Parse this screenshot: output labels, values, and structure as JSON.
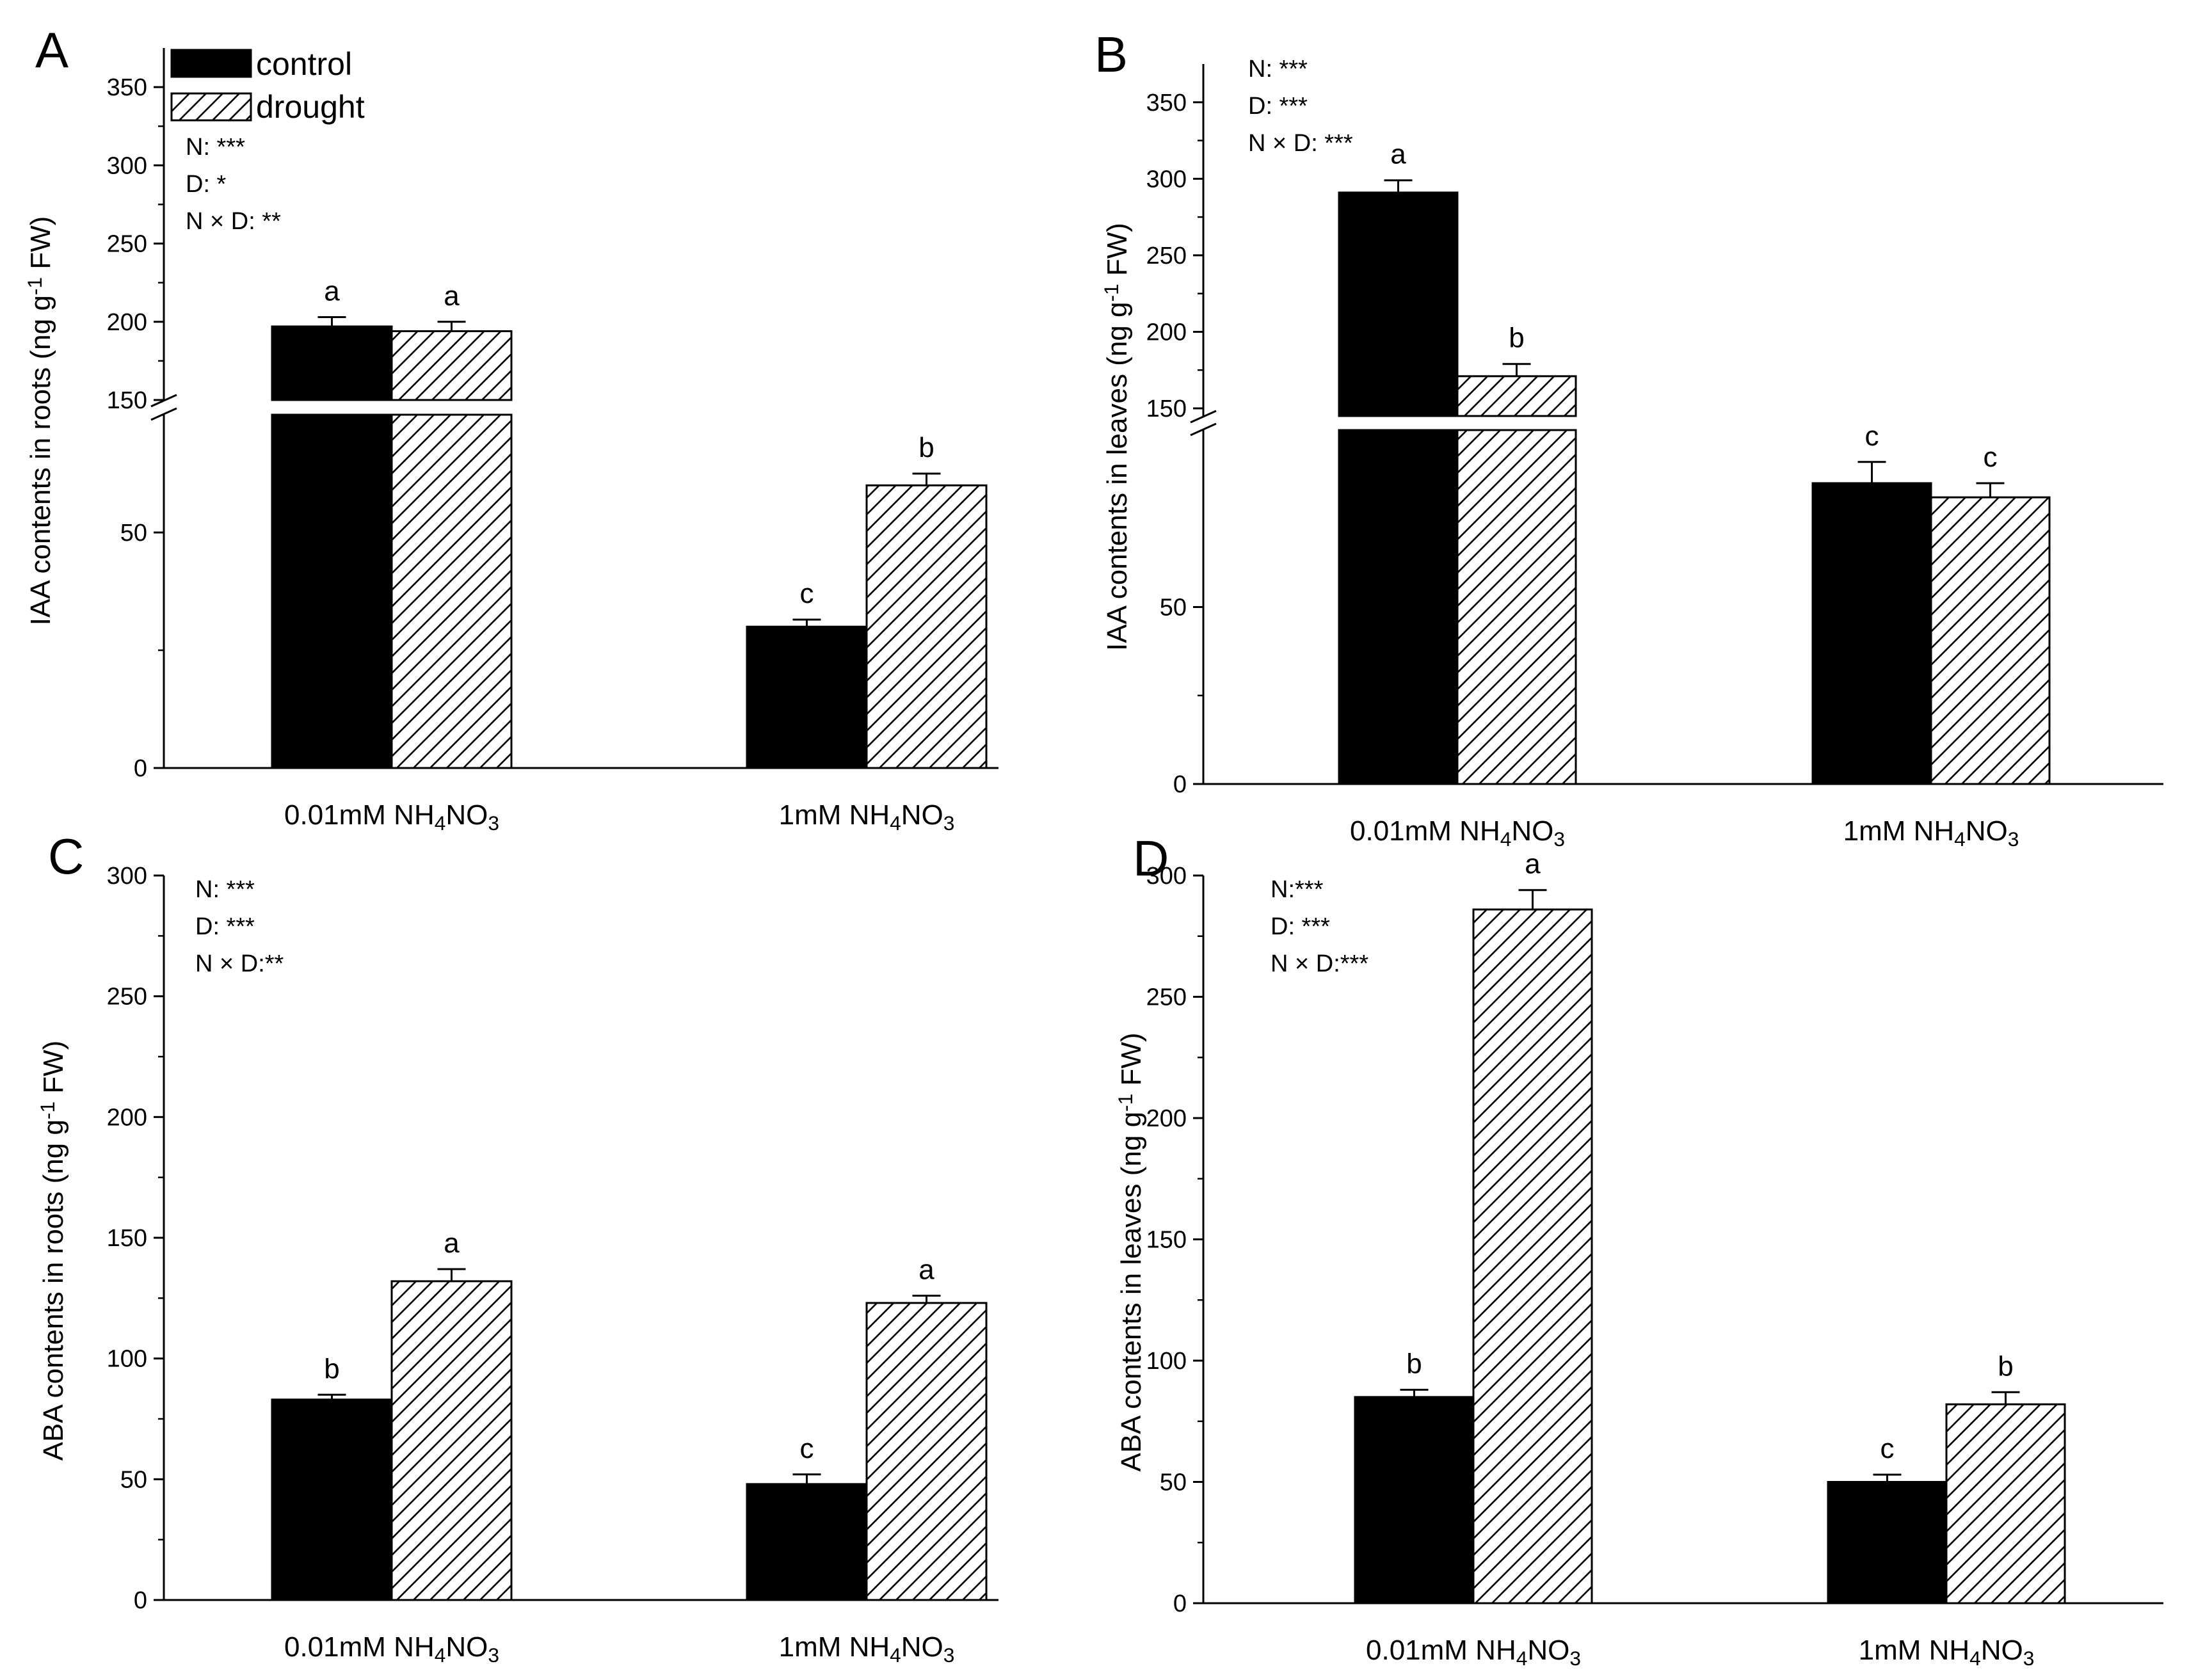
{
  "figure": {
    "legend": {
      "control_label": "control",
      "drought_label": "drought",
      "control_color": "#000000",
      "drought_pattern": "hatched"
    },
    "categories": [
      "0.01mM NH4NO3",
      "1mM NH4NO3"
    ]
  },
  "chart_data": [
    {
      "panel": "A",
      "type": "bar",
      "ylabel": "IAA contents in roots (ng g-1 FW)",
      "categories": [
        "0.01mM NH4NO3",
        "1mM NH4NO3"
      ],
      "series": [
        {
          "name": "control",
          "values": [
            197,
            30
          ],
          "errors": [
            6,
            1.5
          ],
          "letters": [
            "a",
            "c"
          ]
        },
        {
          "name": "drought",
          "values": [
            194,
            60
          ],
          "errors": [
            6,
            2.5
          ],
          "letters": [
            "a",
            "b"
          ]
        }
      ],
      "axis_break": {
        "lower_range": [
          0,
          75
        ],
        "upper_range": [
          150,
          375
        ]
      },
      "yticks_lower": [
        0,
        50
      ],
      "yticks_upper": [
        150,
        200,
        250,
        300,
        350
      ],
      "stats": [
        "N: ***",
        "D: *",
        "N × D: **"
      ]
    },
    {
      "panel": "B",
      "type": "bar",
      "ylabel": "IAA contents in leaves (ng g-1 FW)",
      "categories": [
        "0.01mM NH4NO3",
        "1mM NH4NO3"
      ],
      "series": [
        {
          "name": "control",
          "values": [
            291,
            85
          ],
          "errors": [
            8,
            6
          ],
          "letters": [
            "a",
            "c"
          ]
        },
        {
          "name": "drought",
          "values": [
            171,
            81
          ],
          "errors": [
            8,
            4
          ],
          "letters": [
            "b",
            "c"
          ]
        }
      ],
      "axis_break": {
        "lower_range": [
          0,
          100
        ],
        "upper_range": [
          145,
          375
        ]
      },
      "yticks_lower": [
        0,
        50
      ],
      "yticks_upper": [
        150,
        200,
        250,
        300,
        350
      ],
      "stats": [
        "N: ***",
        "D: ***",
        "N × D: ***"
      ]
    },
    {
      "panel": "C",
      "type": "bar",
      "ylabel": "ABA contents in roots (ng g-1 FW)",
      "categories": [
        "0.01mM NH4NO3",
        "1mM NH4NO3"
      ],
      "series": [
        {
          "name": "control",
          "values": [
            83,
            48
          ],
          "errors": [
            2,
            4
          ],
          "letters": [
            "b",
            "c"
          ]
        },
        {
          "name": "drought",
          "values": [
            132,
            123
          ],
          "errors": [
            5,
            3
          ],
          "letters": [
            "a",
            "a"
          ]
        }
      ],
      "ylim": [
        0,
        300
      ],
      "yticks": [
        0,
        50,
        100,
        150,
        200,
        250,
        300
      ],
      "stats": [
        "N: ***",
        "D: ***",
        "N × D:**"
      ]
    },
    {
      "panel": "D",
      "type": "bar",
      "ylabel": "ABA contents in leaves (ng g-1 FW)",
      "categories": [
        "0.01mM NH4NO3",
        "1mM NH4NO3"
      ],
      "series": [
        {
          "name": "control",
          "values": [
            85,
            50
          ],
          "errors": [
            3,
            3
          ],
          "letters": [
            "b",
            "c"
          ]
        },
        {
          "name": "drought",
          "values": [
            286,
            82
          ],
          "errors": [
            8,
            5
          ],
          "letters": [
            "a",
            "b"
          ]
        }
      ],
      "ylim": [
        0,
        300
      ],
      "yticks": [
        0,
        50,
        100,
        150,
        200,
        250,
        300
      ],
      "stats": [
        "N:***",
        "D: ***",
        "N × D:***"
      ]
    }
  ]
}
